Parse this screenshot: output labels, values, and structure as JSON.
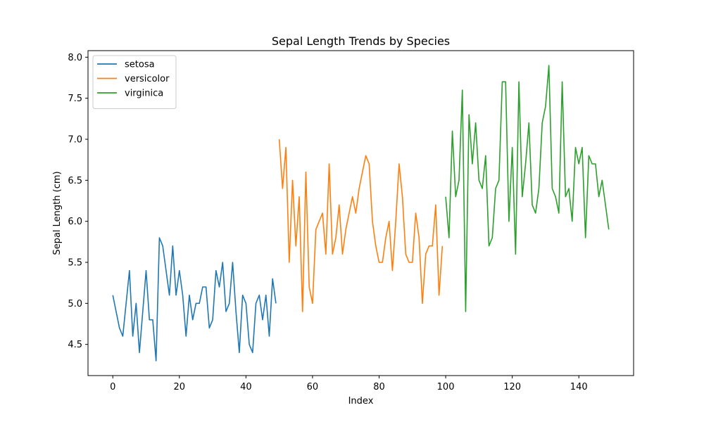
{
  "chart_data": {
    "type": "line",
    "title": "Sepal Length Trends by Species",
    "xlabel": "Index",
    "ylabel": "Sepal Length (cm)",
    "xlim": [
      -7.45,
      156.45
    ],
    "ylim": [
      4.12,
      8.08
    ],
    "xticks": [
      0,
      20,
      40,
      60,
      80,
      100,
      120,
      140
    ],
    "yticks": [
      4.5,
      5.0,
      5.5,
      6.0,
      6.5,
      7.0,
      7.5,
      8.0
    ],
    "xtick_labels": [
      "0",
      "20",
      "40",
      "60",
      "80",
      "100",
      "120",
      "140"
    ],
    "ytick_labels": [
      "4.5",
      "5.0",
      "5.5",
      "6.0",
      "6.5",
      "7.0",
      "7.5",
      "8.0"
    ],
    "grid": false,
    "legend_position": "top-left",
    "series": [
      {
        "name": "setosa",
        "color": "#1f77b4",
        "x_start": 0,
        "values": [
          5.1,
          4.9,
          4.7,
          4.6,
          5.0,
          5.4,
          4.6,
          5.0,
          4.4,
          4.9,
          5.4,
          4.8,
          4.8,
          4.3,
          5.8,
          5.7,
          5.4,
          5.1,
          5.7,
          5.1,
          5.4,
          5.1,
          4.6,
          5.1,
          4.8,
          5.0,
          5.0,
          5.2,
          5.2,
          4.7,
          4.8,
          5.4,
          5.2,
          5.5,
          4.9,
          5.0,
          5.5,
          4.9,
          4.4,
          5.1,
          5.0,
          4.5,
          4.4,
          5.0,
          5.1,
          4.8,
          5.1,
          4.6,
          5.3,
          5.0
        ]
      },
      {
        "name": "versicolor",
        "color": "#ff7f0e",
        "x_start": 50,
        "values": [
          7.0,
          6.4,
          6.9,
          5.5,
          6.5,
          5.7,
          6.3,
          4.9,
          6.6,
          5.2,
          5.0,
          5.9,
          6.0,
          6.1,
          5.6,
          6.7,
          5.6,
          5.8,
          6.2,
          5.6,
          5.9,
          6.1,
          6.3,
          6.1,
          6.4,
          6.6,
          6.8,
          6.7,
          6.0,
          5.7,
          5.5,
          5.5,
          5.8,
          6.0,
          5.4,
          6.0,
          6.7,
          6.3,
          5.6,
          5.5,
          5.5,
          6.1,
          5.8,
          5.0,
          5.6,
          5.7,
          5.7,
          6.2,
          5.1,
          5.7
        ]
      },
      {
        "name": "virginica",
        "color": "#2ca02c",
        "x_start": 100,
        "values": [
          6.3,
          5.8,
          7.1,
          6.3,
          6.5,
          7.6,
          4.9,
          7.3,
          6.7,
          7.2,
          6.5,
          6.4,
          6.8,
          5.7,
          5.8,
          6.4,
          6.5,
          7.7,
          7.7,
          6.0,
          6.9,
          5.6,
          7.7,
          6.3,
          6.7,
          7.2,
          6.2,
          6.1,
          6.4,
          7.2,
          7.4,
          7.9,
          6.4,
          6.3,
          6.1,
          7.7,
          6.3,
          6.4,
          6.0,
          6.9,
          6.7,
          6.9,
          5.8,
          6.8,
          6.7,
          6.7,
          6.3,
          6.5,
          6.2,
          5.9
        ]
      }
    ]
  }
}
